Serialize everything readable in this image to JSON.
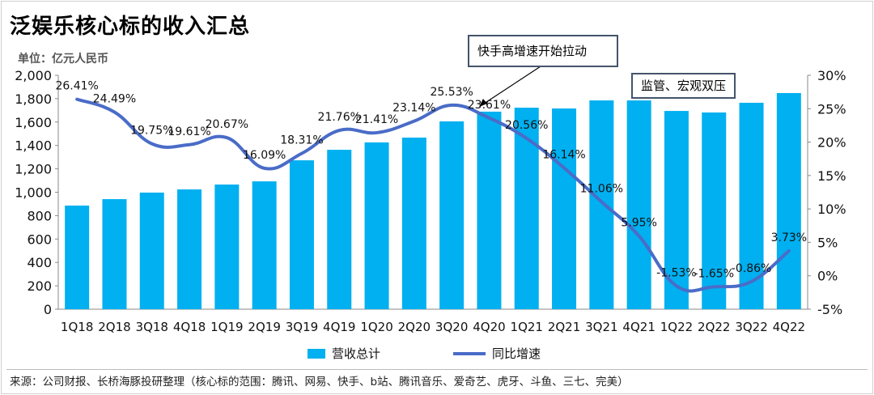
{
  "title": "泛娱乐核心标的收入汇总",
  "unit": "单位：亿元人民币",
  "source": "来源：公司财报、长桥海豚投研整理（核心标的范围：腾讯、网易、快手、b站、腾讯音乐、爱奇艺、虎牙、斗鱼、三七、完美）",
  "annotations": [
    "快手高增速开始拉动",
    "监管、宏观双压"
  ],
  "colors": {
    "bar": "#00b0f0",
    "line": "#4a6cc8"
  },
  "chart_data": {
    "type": "bar+line",
    "categories": [
      "1Q18",
      "2Q18",
      "3Q18",
      "4Q18",
      "1Q19",
      "2Q19",
      "3Q19",
      "4Q19",
      "1Q20",
      "2Q20",
      "3Q20",
      "4Q20",
      "1Q21",
      "2Q21",
      "3Q21",
      "4Q21",
      "1Q22",
      "2Q22",
      "3Q22",
      "4Q22"
    ],
    "series": [
      {
        "name": "营收总计",
        "type": "bar",
        "axis": "left",
        "values": [
          886,
          941,
          997,
          1024,
          1066,
          1093,
          1273,
          1363,
          1426,
          1467,
          1606,
          1689,
          1723,
          1716,
          1785,
          1785,
          1695,
          1682,
          1765,
          1848
        ]
      },
      {
        "name": "同比增速",
        "type": "line",
        "axis": "right",
        "values": [
          26.41,
          24.49,
          19.75,
          19.61,
          20.67,
          16.09,
          18.31,
          21.76,
          21.41,
          23.14,
          25.53,
          23.61,
          20.56,
          16.14,
          11.06,
          5.95,
          -1.53,
          -1.65,
          -0.86,
          3.73
        ],
        "labels": [
          "26.41%",
          "24.49%",
          "19.75%",
          "19.61%",
          "20.67%",
          "16.09%",
          "18.31%",
          "21.76%",
          "21.41%",
          "23.14%",
          "25.53%",
          "23.61%",
          "20.56%",
          "16.14%",
          "11.06%",
          "5.95%",
          "-1.53%",
          "-1.65%",
          "-0.86%",
          "3.73%"
        ]
      }
    ],
    "ylim_left": [
      0,
      2000
    ],
    "yticks_left": [
      "0",
      "200",
      "400",
      "600",
      "800",
      "1,000",
      "1,200",
      "1,400",
      "1,600",
      "1,800",
      "2,000"
    ],
    "ylim_right": [
      -5,
      30
    ],
    "yticks_right": [
      "-5%",
      "0%",
      "5%",
      "10%",
      "15%",
      "20%",
      "25%",
      "30%"
    ],
    "grid": false,
    "legend": "bottom"
  }
}
